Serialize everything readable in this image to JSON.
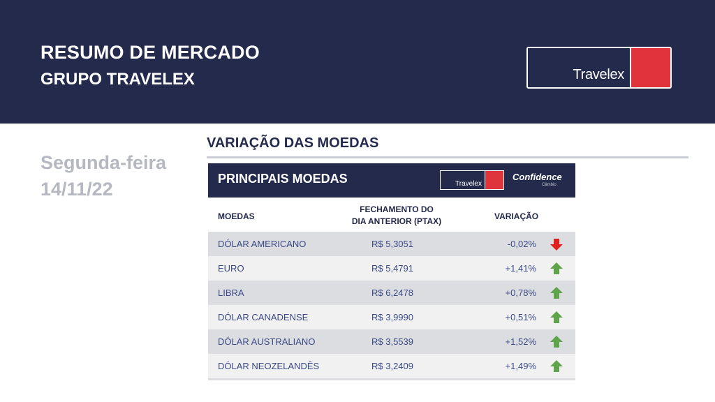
{
  "header": {
    "title": "RESUMO DE MERCADO",
    "subtitle": "GRUPO TRAVELEX",
    "logo_text": "Travelex"
  },
  "date": {
    "weekday": "Segunda-feira",
    "date": "14/11/22"
  },
  "section": {
    "title": "VARIAÇÃO DAS MOEDAS"
  },
  "panel": {
    "title": "PRINCIPAIS MOEDAS",
    "logo_text": "Travelex",
    "partner_text": "Confidence",
    "partner_sub": "Câmbio"
  },
  "table": {
    "headers": {
      "currency": "MOEDAS",
      "close_line1": "FECHAMENTO DO",
      "close_line2": "DIA ANTERIOR (PTAX)",
      "variation": "VARIAÇÃO"
    },
    "rows": [
      {
        "currency": "DÓLAR AMERICANO",
        "price": "R$ 5,3051",
        "variation": "-0,02%",
        "trend": "down"
      },
      {
        "currency": "EURO",
        "price": "R$ 5,4791",
        "variation": "+1,41%",
        "trend": "up"
      },
      {
        "currency": "LIBRA",
        "price": "R$ 6,2478",
        "variation": "+0,78%",
        "trend": "up"
      },
      {
        "currency": "DÓLAR CANADENSE",
        "price": "R$ 3,9990",
        "variation": "+0,51%",
        "trend": "up"
      },
      {
        "currency": "DÓLAR AUSTRALIANO",
        "price": "R$ 3,5539",
        "variation": "+1,52%",
        "trend": "up"
      },
      {
        "currency": "DÓLAR NEOZELANDÊS",
        "price": "R$ 3,2409",
        "variation": "+1,49%",
        "trend": "up"
      }
    ]
  },
  "colors": {
    "navy": "#242a4b",
    "red": "#e0343c",
    "up": "#5da44a",
    "down": "#e0201e"
  },
  "icons": {
    "up": "arrow-up-icon",
    "down": "arrow-down-icon"
  }
}
